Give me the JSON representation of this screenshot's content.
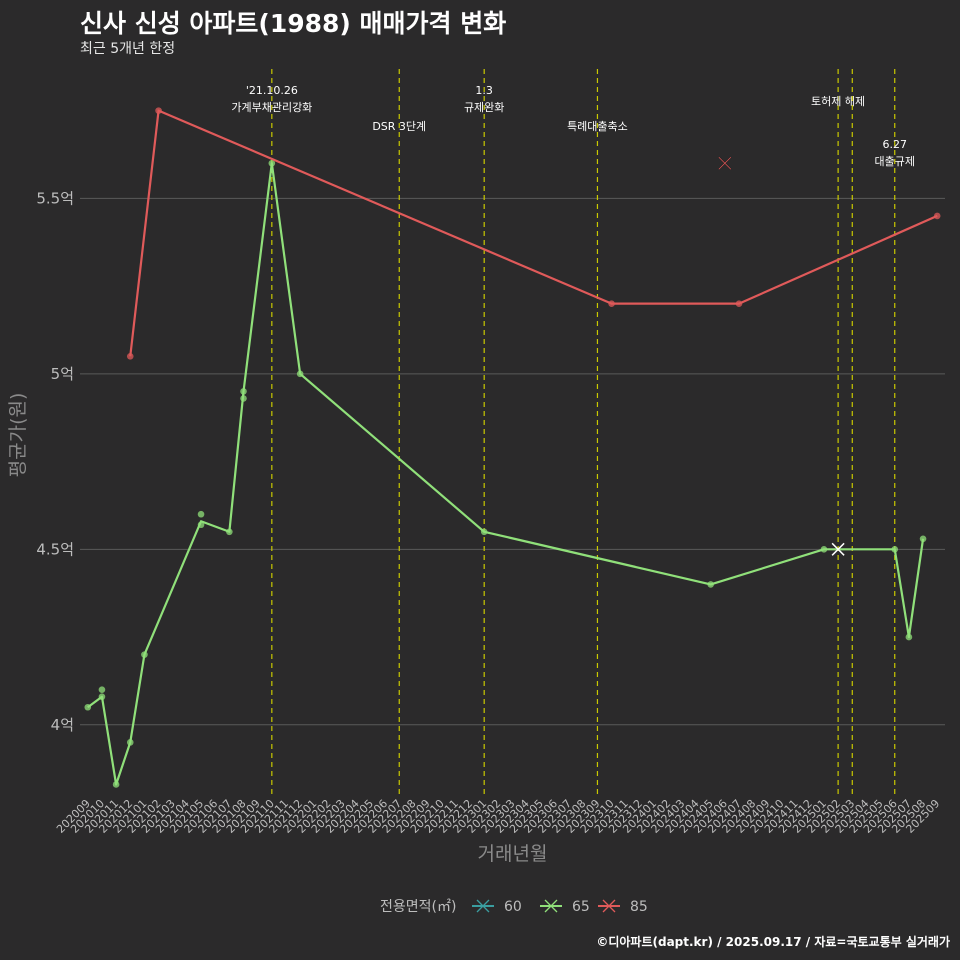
{
  "header": {
    "title": "신사 신성 아파트(1988) 매매가격 변화",
    "subtitle": "최근 5개년 한정"
  },
  "footer": {
    "credit": "©디아파트(dapt.kr) / 2025.09.17 / 자료=국토교통부 실거래가"
  },
  "colors": {
    "background": "#2b2a2b",
    "grid": "#5a5a5a",
    "event_line": "#c9c900",
    "s60": "#3a9ea0",
    "s65": "#90e07a",
    "s85": "#e05a5a"
  },
  "chart_data": {
    "type": "line",
    "xlabel": "거래년월",
    "ylabel": "평균가(원)",
    "ylim": [
      3.8,
      5.88
    ],
    "yticks": [
      {
        "value": 4.0,
        "label": "4억"
      },
      {
        "value": 4.5,
        "label": "4.5억"
      },
      {
        "value": 5.0,
        "label": "5억"
      },
      {
        "value": 5.5,
        "label": "5.5억"
      }
    ],
    "categories": [
      "202009",
      "202010",
      "202011",
      "202012",
      "202101",
      "202102",
      "202103",
      "202104",
      "202105",
      "202106",
      "202107",
      "202108",
      "202109",
      "202110",
      "202111",
      "202112",
      "202201",
      "202202",
      "202203",
      "202204",
      "202205",
      "202206",
      "202207",
      "202208",
      "202209",
      "202210",
      "202211",
      "202212",
      "202301",
      "202302",
      "202303",
      "202304",
      "202305",
      "202306",
      "202307",
      "202308",
      "202309",
      "202310",
      "202311",
      "202312",
      "202401",
      "202402",
      "202403",
      "202404",
      "202405",
      "202406",
      "202407",
      "202408",
      "202409",
      "202410",
      "202411",
      "202412",
      "202501",
      "202502",
      "202503",
      "202504",
      "202505",
      "202506",
      "202507",
      "202508",
      "202509"
    ],
    "events": [
      {
        "x": "202110",
        "label_lines": [
          "'21.10.26",
          "가계부채관리강화"
        ],
        "label_row": 0
      },
      {
        "x": "202207",
        "label_lines": [
          "DSR 3단계"
        ],
        "label_row": 1
      },
      {
        "x": "202301",
        "label_lines": [
          "1.3",
          "규제완화"
        ],
        "label_row": 0
      },
      {
        "x": "202309",
        "label_lines": [
          "특례대출축소"
        ],
        "label_row": 1
      },
      {
        "x": "202502",
        "label_lines": [
          "토허제 해제"
        ],
        "label_row": 0.3
      },
      {
        "x": "202503",
        "label_lines": [],
        "label_row": 0
      },
      {
        "x": "202506",
        "label_lines": [
          "6.27",
          "대출규제"
        ],
        "label_row": 1.5
      }
    ],
    "series": [
      {
        "name": "60",
        "color": "#3a9ea0",
        "points": []
      },
      {
        "name": "65",
        "color": "#90e07a",
        "line": [
          [
            "202009",
            4.05
          ],
          [
            "202010",
            4.08
          ],
          [
            "202011",
            3.83
          ],
          [
            "202012",
            3.95
          ],
          [
            "202101",
            4.2
          ],
          [
            "202105",
            4.58
          ],
          [
            "202107",
            4.55
          ],
          [
            "202108",
            4.95
          ],
          [
            "202110",
            5.6
          ],
          [
            "202112",
            5.0
          ],
          [
            "202301",
            4.55
          ],
          [
            "202405",
            4.4
          ],
          [
            "202501",
            4.5
          ],
          [
            "202506",
            4.5
          ],
          [
            "202507",
            4.25
          ],
          [
            "202508",
            4.53
          ]
        ],
        "points": [
          [
            "202009",
            4.05
          ],
          [
            "202010",
            4.1
          ],
          [
            "202010",
            4.08
          ],
          [
            "202011",
            3.83
          ],
          [
            "202012",
            3.95
          ],
          [
            "202101",
            4.2
          ],
          [
            "202105",
            4.6
          ],
          [
            "202105",
            4.57
          ],
          [
            "202107",
            4.55
          ],
          [
            "202108",
            4.95
          ],
          [
            "202108",
            4.93
          ],
          [
            "202110",
            5.6
          ],
          [
            "202112",
            5.0
          ],
          [
            "202301",
            4.55
          ],
          [
            "202405",
            4.4
          ],
          [
            "202501",
            4.5
          ],
          [
            "202506",
            4.5
          ],
          [
            "202507",
            4.25
          ],
          [
            "202508",
            4.53
          ]
        ],
        "markers_x": [
          [
            "202502",
            4.5
          ]
        ]
      },
      {
        "name": "85",
        "color": "#e05a5a",
        "line": [
          [
            "202012",
            5.05
          ],
          [
            "202102",
            5.75
          ],
          [
            "202310",
            5.2
          ],
          [
            "202407",
            5.2
          ],
          [
            "202509",
            5.45
          ]
        ],
        "points": [
          [
            "202012",
            5.05
          ],
          [
            "202102",
            5.75
          ],
          [
            "202310",
            5.2
          ],
          [
            "202407",
            5.2
          ],
          [
            "202509",
            5.45
          ]
        ],
        "markers_x": [
          [
            "202406",
            5.6
          ]
        ]
      }
    ],
    "legend": {
      "title": "전용면적(㎡)",
      "position": "bottom",
      "items": [
        "60",
        "65",
        "85"
      ]
    }
  }
}
